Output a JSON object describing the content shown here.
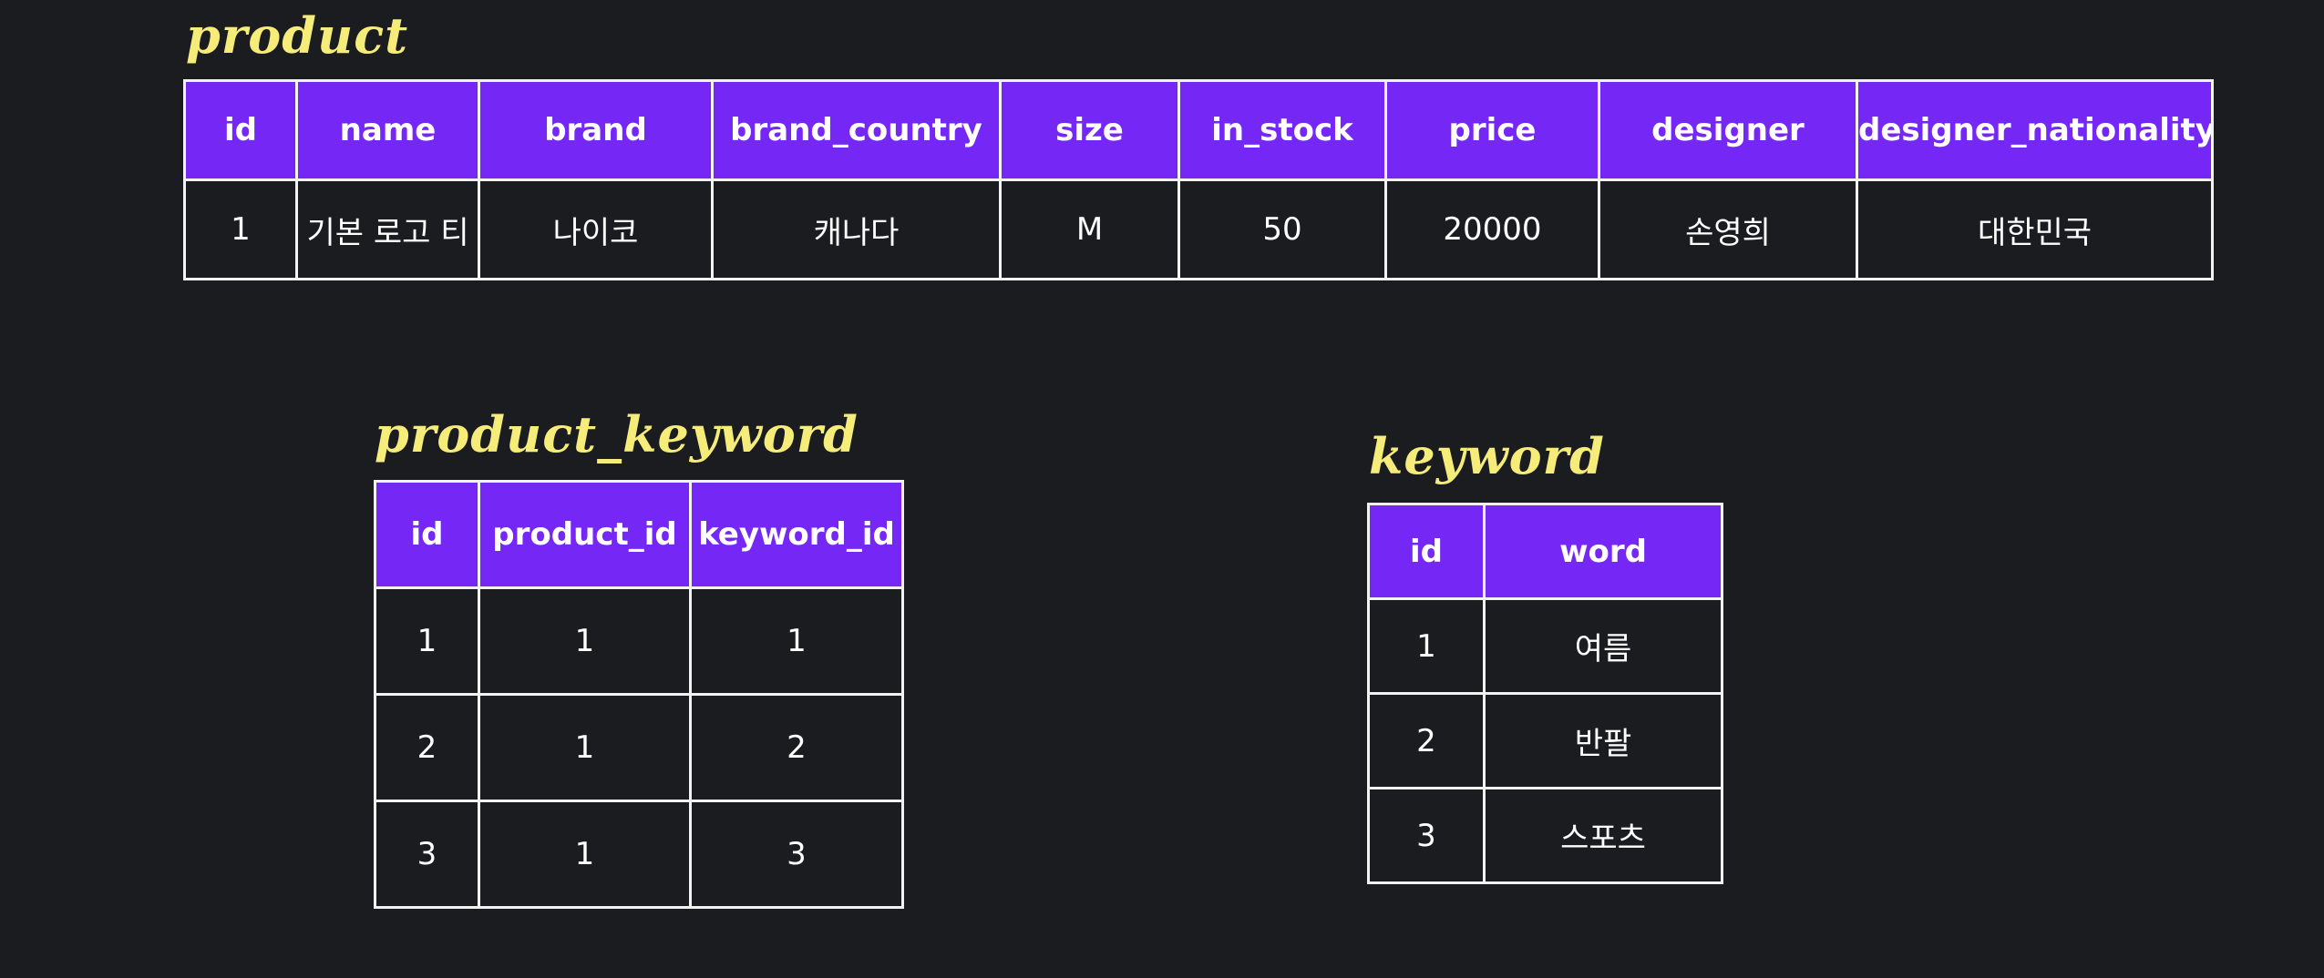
{
  "product": {
    "title": "product",
    "columns": [
      "id",
      "name",
      "brand",
      "brand_country",
      "size",
      "in_stock",
      "price",
      "designer",
      "designer_nationality"
    ],
    "rows": [
      [
        "1",
        "기본 로고 티",
        "나이코",
        "캐나다",
        "M",
        "50",
        "20000",
        "손영희",
        "대한민국"
      ]
    ]
  },
  "product_keyword": {
    "title": "product_keyword",
    "columns": [
      "id",
      "product_id",
      "keyword_id"
    ],
    "rows": [
      [
        "1",
        "1",
        "1"
      ],
      [
        "2",
        "1",
        "2"
      ],
      [
        "3",
        "1",
        "3"
      ]
    ]
  },
  "keyword": {
    "title": "keyword",
    "columns": [
      "id",
      "word"
    ],
    "rows": [
      [
        "1",
        "여름"
      ],
      [
        "2",
        "반팔"
      ],
      [
        "3",
        "스포츠"
      ]
    ]
  },
  "colors": {
    "background": "#1b1c20",
    "header": "#7527f5",
    "title": "#f5ec7a",
    "border": "#f2f2f2"
  }
}
